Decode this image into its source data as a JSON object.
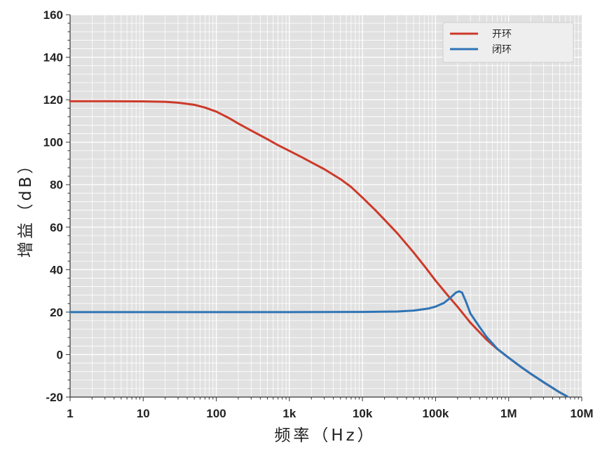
{
  "chart_data": {
    "type": "line",
    "xscale": "log",
    "xlim": [
      1,
      10000000
    ],
    "ylim": [
      -20,
      160
    ],
    "xlabel": "频率（Hz）",
    "ylabel": "增益（dB）",
    "grid": true,
    "legend_position": "top-right",
    "x_ticks": [
      {
        "value": 1,
        "label": "1"
      },
      {
        "value": 10,
        "label": "10"
      },
      {
        "value": 100,
        "label": "100"
      },
      {
        "value": 1000,
        "label": "1k"
      },
      {
        "value": 10000,
        "label": "10k"
      },
      {
        "value": 100000,
        "label": "100k"
      },
      {
        "value": 1000000,
        "label": "1M"
      },
      {
        "value": 10000000,
        "label": "10M"
      }
    ],
    "y_ticks": [
      {
        "value": -20,
        "label": "-20"
      },
      {
        "value": 0,
        "label": "0"
      },
      {
        "value": 20,
        "label": "20"
      },
      {
        "value": 40,
        "label": "40"
      },
      {
        "value": 60,
        "label": "60"
      },
      {
        "value": 80,
        "label": "80"
      },
      {
        "value": 100,
        "label": "100"
      },
      {
        "value": 120,
        "label": "120"
      },
      {
        "value": 140,
        "label": "140"
      },
      {
        "value": 160,
        "label": "160"
      }
    ],
    "series": [
      {
        "name": "开环",
        "color": "#cc3a2a",
        "points": [
          [
            1,
            119.3
          ],
          [
            3,
            119.3
          ],
          [
            10,
            119.2
          ],
          [
            20,
            119.0
          ],
          [
            30,
            118.6
          ],
          [
            50,
            117.6
          ],
          [
            70,
            116.3
          ],
          [
            100,
            114.4
          ],
          [
            150,
            111.3
          ],
          [
            200,
            108.8
          ],
          [
            300,
            105.5
          ],
          [
            500,
            101.4
          ],
          [
            700,
            98.6
          ],
          [
            1000,
            95.9
          ],
          [
            1500,
            92.8
          ],
          [
            2000,
            90.5
          ],
          [
            3000,
            87.3
          ],
          [
            5000,
            82.6
          ],
          [
            7000,
            78.9
          ],
          [
            10000,
            73.9
          ],
          [
            15000,
            68.0
          ],
          [
            20000,
            63.5
          ],
          [
            30000,
            57.1
          ],
          [
            50000,
            48.1
          ],
          [
            70000,
            41.8
          ],
          [
            100000,
            34.8
          ],
          [
            150000,
            27.5
          ],
          [
            200000,
            22.5
          ],
          [
            300000,
            15.0
          ],
          [
            500000,
            7.0
          ],
          [
            700000,
            2.6
          ],
          [
            1000000,
            -1.5
          ],
          [
            1500000,
            -6.0
          ],
          [
            2000000,
            -9.0
          ],
          [
            3000000,
            -13.0
          ],
          [
            5000000,
            -17.8
          ],
          [
            6300000,
            -19.7
          ]
        ]
      },
      {
        "name": "闭环",
        "color": "#2f74b5",
        "points": [
          [
            1,
            20.0
          ],
          [
            100,
            20.0
          ],
          [
            1000,
            20.0
          ],
          [
            10000,
            20.1
          ],
          [
            30000,
            20.3
          ],
          [
            50000,
            20.7
          ],
          [
            80000,
            21.7
          ],
          [
            100000,
            22.6
          ],
          [
            130000,
            24.3
          ],
          [
            160000,
            26.8
          ],
          [
            190000,
            29.2
          ],
          [
            210000,
            29.8
          ],
          [
            230000,
            29.2
          ],
          [
            260000,
            25.0
          ],
          [
            300000,
            19.3
          ],
          [
            400000,
            13.0
          ],
          [
            500000,
            8.3
          ],
          [
            700000,
            2.7
          ],
          [
            1000000,
            -1.5
          ],
          [
            1500000,
            -6.0
          ],
          [
            2000000,
            -9.0
          ],
          [
            3000000,
            -13.0
          ],
          [
            5000000,
            -17.8
          ],
          [
            6300000,
            -19.7
          ]
        ]
      }
    ]
  }
}
